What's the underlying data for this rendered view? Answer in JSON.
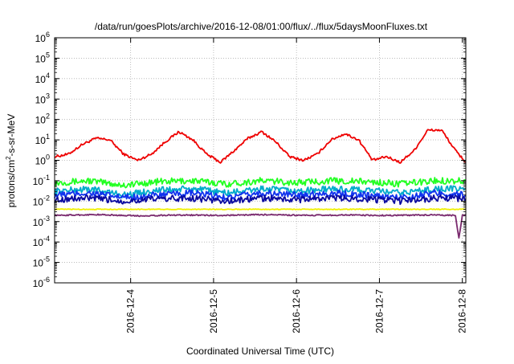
{
  "chart_data": {
    "type": "line",
    "title": "/data/run/goesPlots/archive/2016-12-08/01:00/flux/../flux/5daysMoonFluxes.txt",
    "xlabel": "Coordinated Universal Time (UTC)",
    "ylabel_parts": [
      "protons/cm",
      "2",
      "-s-sr-MeV"
    ],
    "x_scale": "time",
    "xlim": [
      "2016-12-03 02:00",
      "2016-12-08 01:00"
    ],
    "x_ticks": [
      "2016-12-4",
      "2016-12-5",
      "2016-12-6",
      "2016-12-7",
      "2016-12-8"
    ],
    "y_scale": "log",
    "ylim": [
      1e-06,
      1000000.0
    ],
    "y_ticks": [
      {
        "base": "10",
        "exp": "-6"
      },
      {
        "base": "10",
        "exp": "-5"
      },
      {
        "base": "10",
        "exp": "-4"
      },
      {
        "base": "10",
        "exp": "-3"
      },
      {
        "base": "10",
        "exp": "-2"
      },
      {
        "base": "10",
        "exp": "-1"
      },
      {
        "base": "10",
        "exp": "0"
      },
      {
        "base": "10",
        "exp": "1"
      },
      {
        "base": "10",
        "exp": "2"
      },
      {
        "base": "10",
        "exp": "3"
      },
      {
        "base": "10",
        "exp": "4"
      },
      {
        "base": "10",
        "exp": "5"
      },
      {
        "base": "10",
        "exp": "6"
      }
    ],
    "grid": true,
    "legend": "none",
    "series": [
      {
        "color": "#ee0000",
        "x": [
          "2016-12-03 02:00",
          "2016-12-03 06:00",
          "2016-12-03 10:00",
          "2016-12-03 14:00",
          "2016-12-03 18:00",
          "2016-12-03 22:00",
          "2016-12-04 02:00",
          "2016-12-04 06:00",
          "2016-12-04 10:00",
          "2016-12-04 14:00",
          "2016-12-04 18:00",
          "2016-12-04 22:00",
          "2016-12-05 02:00",
          "2016-12-05 06:00",
          "2016-12-05 10:00",
          "2016-12-05 14:00",
          "2016-12-05 18:00",
          "2016-12-05 22:00",
          "2016-12-06 02:00",
          "2016-12-06 06:00",
          "2016-12-06 10:00",
          "2016-12-06 14:00",
          "2016-12-06 18:00",
          "2016-12-06 22:00",
          "2016-12-07 02:00",
          "2016-12-07 06:00",
          "2016-12-07 10:00",
          "2016-12-07 14:00",
          "2016-12-07 18:00",
          "2016-12-07 22:00",
          "2016-12-08 01:00"
        ],
        "y": [
          1.5,
          2,
          6,
          12,
          10,
          2,
          1,
          2,
          8,
          25,
          10,
          2,
          0.8,
          3,
          12,
          25,
          8,
          1.5,
          1,
          2,
          10,
          20,
          10,
          1,
          1.5,
          0.8,
          3,
          30,
          30,
          3,
          0.8
        ]
      },
      {
        "color": "#22ff22",
        "x": [
          "2016-12-03 02:00",
          "2016-12-03 12:00",
          "2016-12-03 22:00",
          "2016-12-04 08:00",
          "2016-12-04 18:00",
          "2016-12-05 04:00",
          "2016-12-05 14:00",
          "2016-12-06 00:00",
          "2016-12-06 10:00",
          "2016-12-06 20:00",
          "2016-12-07 06:00",
          "2016-12-07 16:00",
          "2016-12-08 01:00"
        ],
        "y": [
          0.08,
          0.1,
          0.06,
          0.09,
          0.1,
          0.07,
          0.1,
          0.08,
          0.1,
          0.09,
          0.07,
          0.1,
          0.1
        ]
      },
      {
        "color": "#00aacc",
        "x": [
          "2016-12-03 02:00",
          "2016-12-03 12:00",
          "2016-12-03 22:00",
          "2016-12-04 08:00",
          "2016-12-04 18:00",
          "2016-12-05 04:00",
          "2016-12-05 14:00",
          "2016-12-06 00:00",
          "2016-12-06 10:00",
          "2016-12-06 20:00",
          "2016-12-07 06:00",
          "2016-12-07 16:00",
          "2016-12-08 01:00"
        ],
        "y": [
          0.03,
          0.04,
          0.02,
          0.035,
          0.04,
          0.025,
          0.04,
          0.03,
          0.04,
          0.035,
          0.025,
          0.04,
          0.04
        ]
      },
      {
        "color": "#1133ee",
        "x": [
          "2016-12-03 02:00",
          "2016-12-03 12:00",
          "2016-12-03 22:00",
          "2016-12-04 08:00",
          "2016-12-04 18:00",
          "2016-12-05 04:00",
          "2016-12-05 14:00",
          "2016-12-06 00:00",
          "2016-12-06 10:00",
          "2016-12-06 20:00",
          "2016-12-07 06:00",
          "2016-12-07 16:00",
          "2016-12-08 01:00"
        ],
        "y": [
          0.02,
          0.025,
          0.015,
          0.02,
          0.025,
          0.015,
          0.025,
          0.02,
          0.025,
          0.02,
          0.015,
          0.025,
          0.02
        ]
      },
      {
        "color": "#0a0aa0",
        "x": [
          "2016-12-03 02:00",
          "2016-12-03 12:00",
          "2016-12-03 22:00",
          "2016-12-04 08:00",
          "2016-12-04 18:00",
          "2016-12-05 04:00",
          "2016-12-05 14:00",
          "2016-12-06 00:00",
          "2016-12-06 10:00",
          "2016-12-06 20:00",
          "2016-12-07 06:00",
          "2016-12-07 16:00",
          "2016-12-08 01:00"
        ],
        "y": [
          0.012,
          0.014,
          0.01,
          0.013,
          0.014,
          0.01,
          0.014,
          0.012,
          0.014,
          0.013,
          0.01,
          0.014,
          0.013
        ]
      },
      {
        "color": "#f0f000",
        "x": [
          "2016-12-03 02:00",
          "2016-12-04 02:00",
          "2016-12-05 02:00",
          "2016-12-06 02:00",
          "2016-12-07 02:00",
          "2016-12-08 01:00"
        ],
        "y": [
          0.004,
          0.004,
          0.004,
          0.004,
          0.004,
          0.004
        ]
      },
      {
        "color": "#7a2a6e",
        "x": [
          "2016-12-03 02:00",
          "2016-12-03 14:00",
          "2016-12-04 02:00",
          "2016-12-04 14:00",
          "2016-12-05 02:00",
          "2016-12-05 14:00",
          "2016-12-06 02:00",
          "2016-12-06 14:00",
          "2016-12-07 02:00",
          "2016-12-07 14:00",
          "2016-12-07 22:00",
          "2016-12-07 23:00",
          "2016-12-08 00:00",
          "2016-12-08 01:00"
        ],
        "y": [
          0.002,
          0.0022,
          0.0019,
          0.0021,
          0.002,
          0.0022,
          0.002,
          0.0021,
          0.002,
          0.0021,
          0.002,
          0.00015,
          0.002,
          0.002
        ]
      }
    ]
  }
}
